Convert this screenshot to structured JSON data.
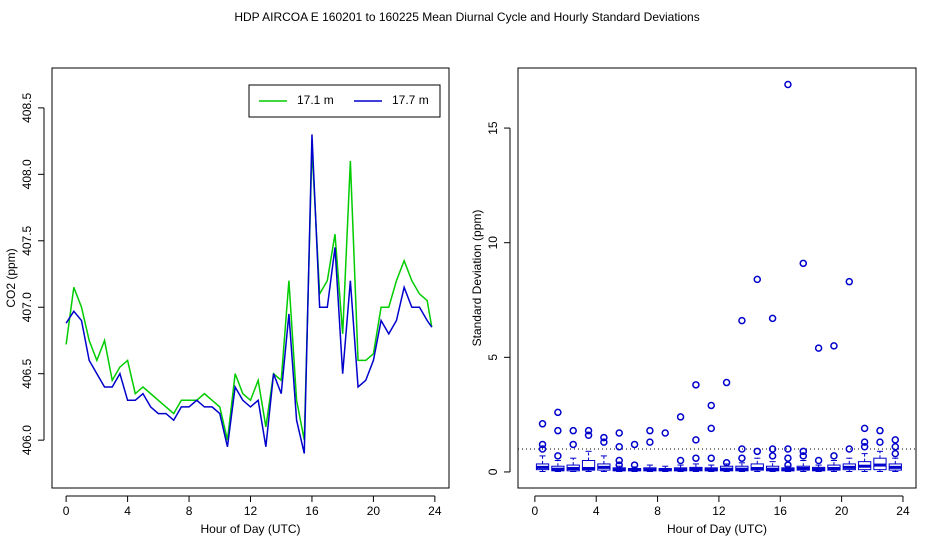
{
  "title": "HDP   AIRCOA E   160201 to 160225   Mean Diurnal Cycle and Hourly Standard Deviations",
  "chart_data": [
    {
      "type": "line",
      "xlabel": "Hour of Day (UTC)",
      "ylabel": "CO2 (ppm)",
      "xlim": [
        -0.92,
        24.92
      ],
      "ylim": [
        405.64,
        408.8
      ],
      "xticks": [
        0,
        4,
        8,
        12,
        16,
        20,
        24
      ],
      "yticks": [
        {
          "value": 406,
          "label": "406.0"
        },
        406.5,
        {
          "value": 407,
          "label": "407.0"
        },
        407.5,
        {
          "value": 408,
          "label": "408.0"
        },
        408.5
      ],
      "legend": "topright",
      "x": [
        0,
        0.5,
        1,
        1.5,
        2,
        2.5,
        3,
        3.5,
        4,
        4.5,
        5,
        5.5,
        6,
        6.5,
        7,
        7.5,
        8,
        8.5,
        9,
        9.5,
        10,
        10.5,
        11,
        11.5,
        12,
        12.5,
        13,
        13.5,
        14,
        14.5,
        15,
        15.5,
        16,
        16.5,
        17,
        17.5,
        18,
        18.5,
        19,
        19.5,
        20,
        20.5,
        21,
        21.5,
        22,
        22.5,
        23,
        23.5,
        23.8
      ],
      "series": [
        {
          "name": "17.1 m",
          "color": "#00cc00",
          "values": [
            406.72,
            407.15,
            407.0,
            406.75,
            406.6,
            406.75,
            406.45,
            406.55,
            406.6,
            406.35,
            406.4,
            406.35,
            406.3,
            406.25,
            406.2,
            406.3,
            406.3,
            406.3,
            406.35,
            406.3,
            406.25,
            406.0,
            406.5,
            406.35,
            406.3,
            406.45,
            406.1,
            406.5,
            406.45,
            407.2,
            406.3,
            406.0,
            408.2,
            407.1,
            407.2,
            407.55,
            406.8,
            408.1,
            406.6,
            406.6,
            406.65,
            407.0,
            407.0,
            407.2,
            407.35,
            407.2,
            407.1,
            407.05,
            406.85
          ]
        },
        {
          "name": "17.7 m",
          "color": "#0000cc",
          "values": [
            406.88,
            406.97,
            406.9,
            406.6,
            406.5,
            406.4,
            406.4,
            406.5,
            406.3,
            406.3,
            406.35,
            406.25,
            406.2,
            406.2,
            406.15,
            406.25,
            406.25,
            406.3,
            406.25,
            406.25,
            406.2,
            405.95,
            406.4,
            406.3,
            406.25,
            406.3,
            405.95,
            406.5,
            406.35,
            406.95,
            406.15,
            405.9,
            408.3,
            407.0,
            407.0,
            407.45,
            406.5,
            407.2,
            406.4,
            406.45,
            406.6,
            406.9,
            406.8,
            406.9,
            407.15,
            407.0,
            407.0,
            406.9,
            406.85
          ]
        }
      ]
    },
    {
      "type": "box",
      "xlabel": "Hour of Day (UTC)",
      "ylabel": "Standard Deviation (ppm)",
      "xlim": [
        -1.1,
        24.85
      ],
      "ylim": [
        -0.7,
        17.62
      ],
      "xticks": [
        0,
        4,
        8,
        12,
        16,
        20,
        24
      ],
      "yticks": [
        0,
        5,
        10,
        15
      ],
      "color": "#0000cc",
      "reference_line": 1,
      "boxes": [
        {
          "x": 0.5,
          "whislo": 0.02,
          "q1": 0.1,
          "med": 0.2,
          "q3": 0.35,
          "whishi": 0.7,
          "fliers": [
            1.0,
            1.2,
            2.1
          ]
        },
        {
          "x": 1.5,
          "whislo": 0.02,
          "q1": 0.05,
          "med": 0.12,
          "q3": 0.25,
          "whishi": 0.5,
          "fliers": [
            0.7,
            1.8,
            2.6
          ]
        },
        {
          "x": 2.5,
          "whislo": 0.02,
          "q1": 0.05,
          "med": 0.15,
          "q3": 0.3,
          "whishi": 0.6,
          "fliers": [
            1.2,
            1.8
          ]
        },
        {
          "x": 3.5,
          "whislo": 0.02,
          "q1": 0.08,
          "med": 0.15,
          "q3": 0.5,
          "whishi": 0.9,
          "fliers": [
            1.6,
            1.8
          ]
        },
        {
          "x": 4.5,
          "whislo": 0.02,
          "q1": 0.08,
          "med": 0.2,
          "q3": 0.35,
          "whishi": 0.7,
          "fliers": [
            1.3,
            1.5
          ]
        },
        {
          "x": 5.5,
          "whislo": 0.02,
          "q1": 0.05,
          "med": 0.1,
          "q3": 0.18,
          "whishi": 0.25,
          "fliers": [
            0.3,
            0.5,
            1.1,
            1.7
          ]
        },
        {
          "x": 6.5,
          "whislo": 0.02,
          "q1": 0.05,
          "med": 0.1,
          "q3": 0.15,
          "whishi": 0.22,
          "fliers": [
            0.3,
            1.2
          ]
        },
        {
          "x": 7.5,
          "whislo": 0.02,
          "q1": 0.05,
          "med": 0.1,
          "q3": 0.18,
          "whishi": 0.3,
          "fliers": [
            1.3,
            1.8
          ]
        },
        {
          "x": 8.5,
          "whislo": 0.02,
          "q1": 0.05,
          "med": 0.1,
          "q3": 0.15,
          "whishi": 0.25,
          "fliers": [
            1.7
          ]
        },
        {
          "x": 9.5,
          "whislo": 0.02,
          "q1": 0.05,
          "med": 0.1,
          "q3": 0.18,
          "whishi": 0.3,
          "fliers": [
            0.5,
            2.4
          ]
        },
        {
          "x": 10.5,
          "whislo": 0.02,
          "q1": 0.05,
          "med": 0.12,
          "q3": 0.2,
          "whishi": 0.35,
          "fliers": [
            0.6,
            1.4,
            3.8
          ]
        },
        {
          "x": 11.5,
          "whislo": 0.02,
          "q1": 0.05,
          "med": 0.1,
          "q3": 0.18,
          "whishi": 0.3,
          "fliers": [
            0.6,
            1.9,
            2.9
          ]
        },
        {
          "x": 12.5,
          "whislo": 0.02,
          "q1": 0.05,
          "med": 0.12,
          "q3": 0.25,
          "whishi": 0.35,
          "fliers": [
            0.4,
            3.9
          ]
        },
        {
          "x": 13.5,
          "whislo": 0.02,
          "q1": 0.05,
          "med": 0.12,
          "q3": 0.25,
          "whishi": 0.4,
          "fliers": [
            0.6,
            1.0,
            6.6
          ]
        },
        {
          "x": 14.5,
          "whislo": 0.02,
          "q1": 0.08,
          "med": 0.15,
          "q3": 0.35,
          "whishi": 0.6,
          "fliers": [
            0.9,
            8.4
          ]
        },
        {
          "x": 15.5,
          "whislo": 0.02,
          "q1": 0.05,
          "med": 0.12,
          "q3": 0.25,
          "whishi": 0.45,
          "fliers": [
            0.7,
            1.0,
            6.7
          ]
        },
        {
          "x": 16.5,
          "whislo": 0.02,
          "q1": 0.05,
          "med": 0.1,
          "q3": 0.18,
          "whishi": 0.25,
          "fliers": [
            0.3,
            0.6,
            1.0,
            16.9
          ]
        },
        {
          "x": 17.5,
          "whislo": 0.02,
          "q1": 0.08,
          "med": 0.15,
          "q3": 0.25,
          "whishi": 0.5,
          "fliers": [
            0.7,
            0.9,
            9.1
          ]
        },
        {
          "x": 18.5,
          "whislo": 0.02,
          "q1": 0.05,
          "med": 0.12,
          "q3": 0.2,
          "whishi": 0.3,
          "fliers": [
            0.5,
            5.4
          ]
        },
        {
          "x": 19.5,
          "whislo": 0.02,
          "q1": 0.08,
          "med": 0.15,
          "q3": 0.3,
          "whishi": 0.5,
          "fliers": [
            0.7,
            5.5
          ]
        },
        {
          "x": 20.5,
          "whislo": 0.02,
          "q1": 0.1,
          "med": 0.2,
          "q3": 0.35,
          "whishi": 0.6,
          "fliers": [
            1.0,
            8.3
          ]
        },
        {
          "x": 21.5,
          "whislo": 0.02,
          "q1": 0.1,
          "med": 0.25,
          "q3": 0.45,
          "whishi": 0.8,
          "fliers": [
            1.1,
            1.3,
            1.9
          ]
        },
        {
          "x": 22.5,
          "whislo": 0.02,
          "q1": 0.1,
          "med": 0.3,
          "q3": 0.6,
          "whishi": 0.9,
          "fliers": [
            1.3,
            1.8
          ]
        },
        {
          "x": 23.5,
          "whislo": 0.02,
          "q1": 0.08,
          "med": 0.2,
          "q3": 0.35,
          "whishi": 0.6,
          "fliers": [
            0.8,
            1.1,
            1.4
          ]
        }
      ]
    }
  ]
}
